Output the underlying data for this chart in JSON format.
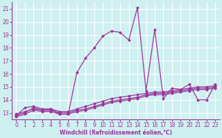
{
  "xlabel": "Windchill (Refroidissement éolien,°C)",
  "bg_color": "#cff0f0",
  "grid_color": "#ffffff",
  "line_color": "#993399",
  "x": [
    0,
    1,
    2,
    3,
    4,
    5,
    6,
    7,
    8,
    9,
    10,
    11,
    12,
    13,
    14,
    15,
    16,
    17,
    18,
    19,
    20,
    21,
    22,
    23
  ],
  "line1": [
    12.8,
    13.4,
    13.5,
    13.3,
    13.3,
    12.9,
    12.9,
    16.1,
    17.2,
    18.0,
    18.9,
    19.3,
    19.2,
    18.6,
    21.1,
    14.7,
    19.4,
    14.1,
    14.9,
    14.8,
    15.2,
    14.0,
    14.0,
    15.2
  ],
  "line2": [
    12.8,
    13.0,
    13.4,
    13.2,
    13.2,
    13.0,
    13.0,
    13.2,
    13.3,
    13.5,
    13.7,
    13.9,
    14.0,
    14.1,
    14.2,
    14.4,
    14.5,
    14.5,
    14.6,
    14.7,
    14.8,
    14.9,
    14.9,
    15.0
  ],
  "line3": [
    12.9,
    13.1,
    13.3,
    13.2,
    13.3,
    13.1,
    13.1,
    13.3,
    13.5,
    13.7,
    13.9,
    14.1,
    14.2,
    14.3,
    14.4,
    14.5,
    14.6,
    14.6,
    14.7,
    14.8,
    14.9,
    15.0,
    15.0,
    15.1
  ],
  "line4": [
    12.7,
    12.9,
    13.2,
    13.1,
    13.1,
    12.9,
    12.9,
    13.1,
    13.2,
    13.4,
    13.6,
    13.8,
    13.9,
    14.0,
    14.1,
    14.3,
    14.4,
    14.4,
    14.5,
    14.6,
    14.7,
    14.8,
    14.8,
    14.9
  ],
  "ylim": [
    12.5,
    21.5
  ],
  "xlim": [
    -0.5,
    23.5
  ],
  "yticks": [
    13,
    14,
    15,
    16,
    17,
    18,
    19,
    20,
    21
  ],
  "xticks": [
    0,
    1,
    2,
    3,
    4,
    5,
    6,
    7,
    8,
    9,
    10,
    11,
    12,
    13,
    14,
    15,
    16,
    17,
    18,
    19,
    20,
    21,
    22,
    23
  ],
  "xlabel_fontsize": 5.5,
  "tick_fontsize": 5.5,
  "lw": 0.9,
  "marker_size": 2.5
}
